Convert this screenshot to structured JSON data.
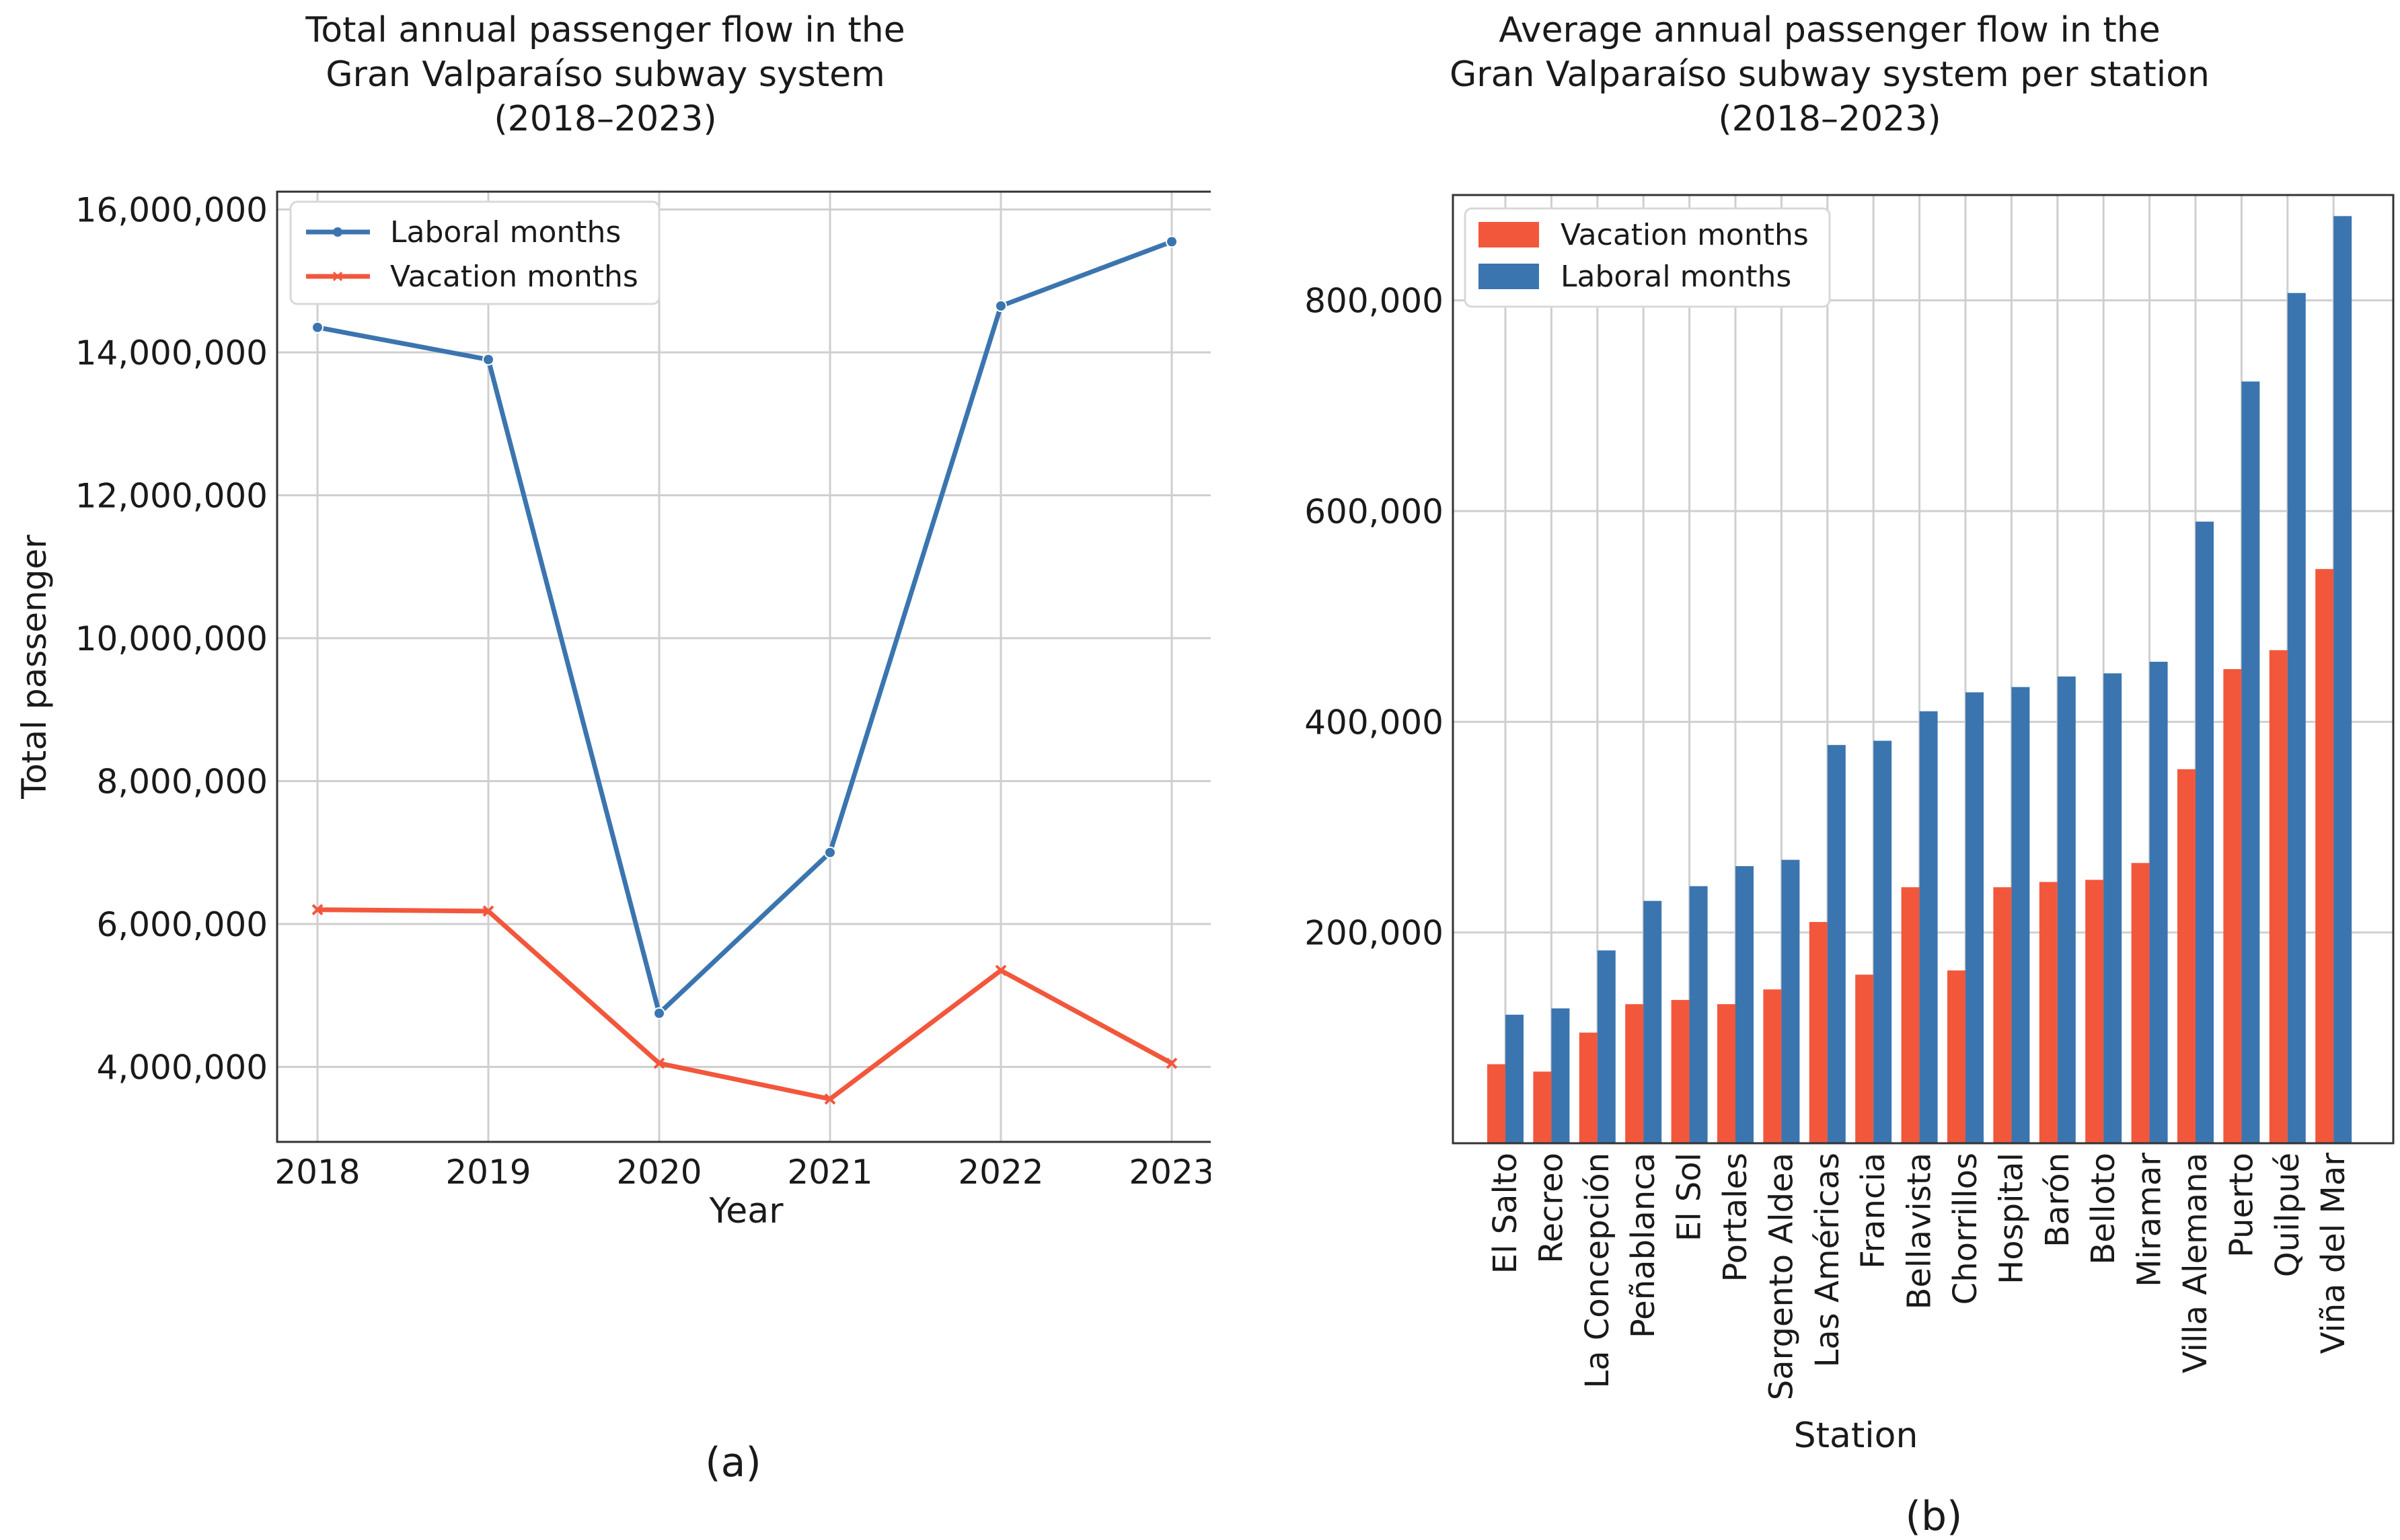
{
  "chart_data": [
    {
      "type": "line",
      "title": "Total annual passenger flow in the\nGran Valparaíso subway system\n(2018–2023)",
      "xlabel": "Year",
      "ylabel": "Total passenger",
      "x": [
        "2018",
        "2019",
        "2020",
        "2021",
        "2022",
        "2023"
      ],
      "ylim": [
        2950000,
        16250000
      ],
      "yticks": [
        4000000,
        6000000,
        8000000,
        10000000,
        12000000,
        14000000,
        16000000
      ],
      "ytick_labels": [
        "4,000,000",
        "6,000,000",
        "8,000,000",
        "10,000,000",
        "12,000,000",
        "14,000,000",
        "16,000,000"
      ],
      "grid": true,
      "legend_position": "top-left",
      "series": [
        {
          "name": "Laboral months",
          "color": "#3b75af",
          "marker": "dot",
          "values": [
            14350000,
            13900000,
            4750000,
            7000000,
            14650000,
            15550000
          ]
        },
        {
          "name": "Vacation months",
          "color": "#f2573c",
          "marker": "x",
          "values": [
            6200000,
            6180000,
            4050000,
            3550000,
            5350000,
            4050000
          ]
        }
      ],
      "panel_label": "(a)"
    },
    {
      "type": "bar",
      "title": "Average annual passenger flow in the\nGran Valparaíso subway system per station\n(2018–2023)",
      "xlabel": "Station",
      "ylabel": "",
      "ylim": [
        0,
        900000
      ],
      "yticks": [
        200000,
        400000,
        600000,
        800000
      ],
      "ytick_labels": [
        "200,000",
        "400,000",
        "600,000",
        "800,000"
      ],
      "grid": true,
      "legend_position": "top-left",
      "categories": [
        "El Salto",
        "Recreo",
        "La Concepción",
        "Peñablanca",
        "El Sol",
        "Portales",
        "Sargento Aldea",
        "Las Américas",
        "Francia",
        "Bellavista",
        "Chorrillos",
        "Hospital",
        "Barón",
        "Belloto",
        "Miramar",
        "Villa Alemana",
        "Puerto",
        "Quilpué",
        "Viña del Mar"
      ],
      "series": [
        {
          "name": "Vacation months",
          "color": "#f2573c",
          "values": [
            75000,
            68000,
            105000,
            132000,
            136000,
            132000,
            146000,
            210000,
            160000,
            243000,
            164000,
            243000,
            248000,
            250000,
            266000,
            355000,
            450000,
            468000,
            545000
          ]
        },
        {
          "name": "Laboral months",
          "color": "#3b75af",
          "values": [
            122000,
            128000,
            183000,
            230000,
            244000,
            263000,
            269000,
            378000,
            382000,
            410000,
            428000,
            433000,
            443000,
            446000,
            457000,
            590000,
            723000,
            807000,
            880000
          ]
        }
      ],
      "panel_label": "(b)"
    }
  ]
}
